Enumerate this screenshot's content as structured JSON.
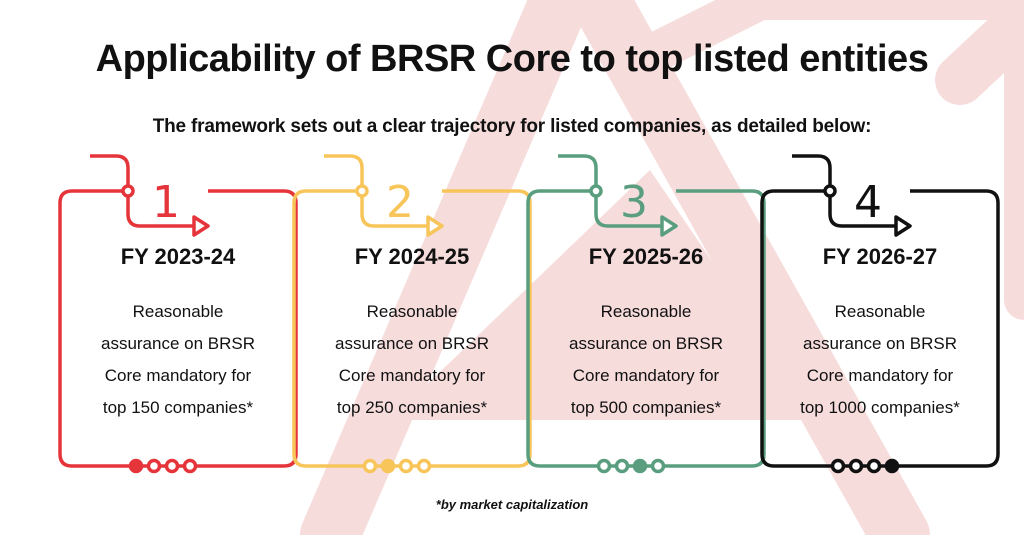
{
  "title": "Applicability of BRSR Core to top listed entities",
  "subtitle": "The framework sets out a clear trajectory for listed companies, as detailed below:",
  "cards": [
    {
      "number": "1",
      "year": "FY 2023-24",
      "desc_lines": [
        "Reasonable",
        "assurance on BRSR",
        "Core mandatory for",
        "top 150 companies*"
      ],
      "color": "#e5343a",
      "active_dot": 0
    },
    {
      "number": "2",
      "year": "FY 2024-25",
      "desc_lines": [
        "Reasonable",
        "assurance on BRSR",
        "Core mandatory for",
        "top 250 companies*"
      ],
      "color": "#f7c55a",
      "active_dot": 1
    },
    {
      "number": "3",
      "year": "FY 2025-26",
      "desc_lines": [
        "Reasonable",
        "assurance on BRSR",
        "Core mandatory for",
        "top 500 companies*"
      ],
      "color": "#5a9e7f",
      "active_dot": 2
    },
    {
      "number": "4",
      "year": "FY 2026-27",
      "desc_lines": [
        "Reasonable",
        "assurance on BRSR",
        "Core mandatory for",
        "top 1000 companies*"
      ],
      "color": "#111111",
      "active_dot": 3
    }
  ],
  "footnote": "*by market capitalization",
  "background_color": "#f7dcdc"
}
